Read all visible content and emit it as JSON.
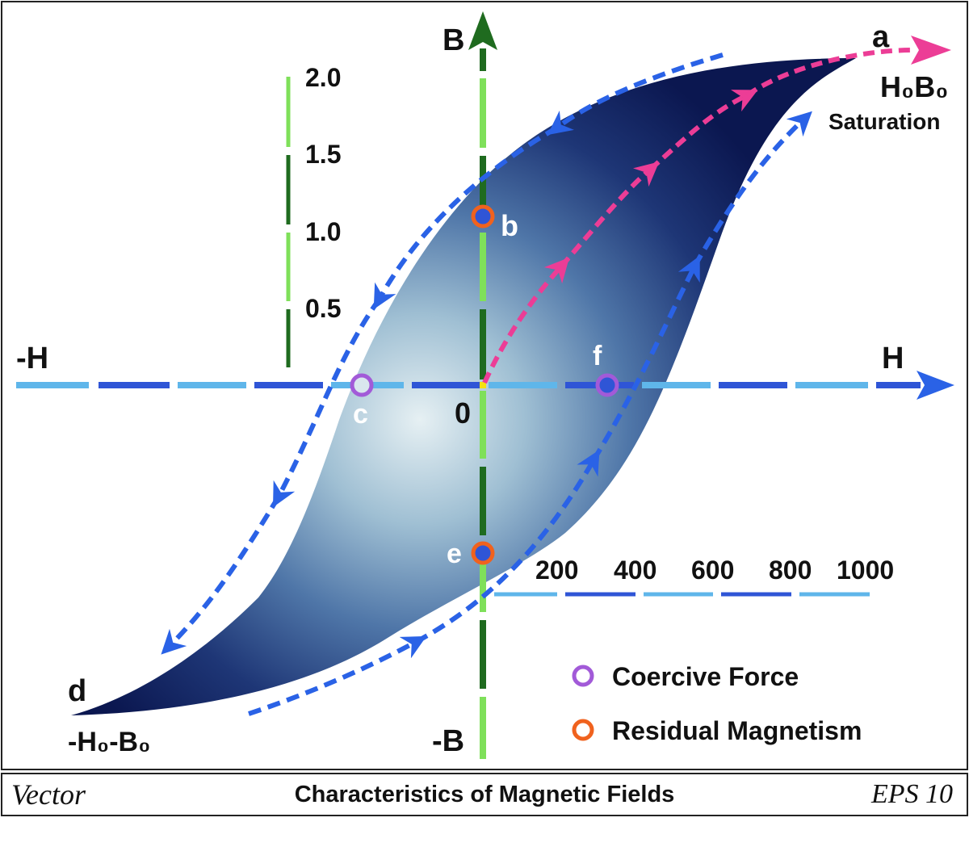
{
  "axes": {
    "h_positive": "H",
    "h_negative": "-H",
    "b_positive": "B",
    "b_negative": "-B",
    "origin": "0"
  },
  "b_scale": [
    "0.5",
    "1.0",
    "1.5",
    "2.0"
  ],
  "h_scale": [
    "200",
    "400",
    "600",
    "800",
    "1000"
  ],
  "points": {
    "a": "a",
    "a_sub": "H₀B₀",
    "a_note": "Saturation",
    "b": "b",
    "c": "c",
    "d": "d",
    "d_sub": "-H₀-B₀",
    "e": "e",
    "f": "f"
  },
  "legend": {
    "coercive": "Coercive Force",
    "residual": "Residual Magnetism"
  },
  "footer": {
    "left": "Vector",
    "title": "Characteristics of Magnetic Fields",
    "right": "EPS 10"
  },
  "colors": {
    "loop_dark": "#0c1a50",
    "loop_light": "#e4eef2",
    "arrow_blue": "#2a62e6",
    "arrow_pink": "#ec3d96",
    "coercive_marker": "#a25ad8",
    "residual_marker": "#f0621e",
    "b_axis_dark": "#1f6b1f",
    "b_axis_light": "#7fe05a",
    "h_axis_dark": "#2f55d6",
    "h_axis_light": "#5fb6ea"
  }
}
